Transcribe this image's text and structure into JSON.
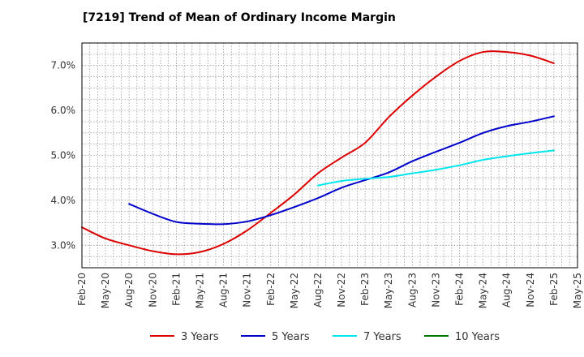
{
  "chart_data": {
    "type": "line",
    "title": "[7219]  Trend of Mean of Ordinary Income Margin",
    "xlabel": "",
    "ylabel": "",
    "x_tick_labels": [
      "Feb-20",
      "May-20",
      "Aug-20",
      "Nov-20",
      "Feb-21",
      "May-21",
      "Aug-21",
      "Nov-21",
      "Feb-22",
      "May-22",
      "Aug-22",
      "Nov-22",
      "Feb-23",
      "May-23",
      "Aug-23",
      "Nov-23",
      "Feb-24",
      "May-24",
      "Aug-24",
      "Nov-24",
      "Feb-25",
      "May-25"
    ],
    "y_ticks": [
      3.0,
      4.0,
      5.0,
      6.0,
      7.0
    ],
    "y_tick_labels": [
      "3.0%",
      "4.0%",
      "5.0%",
      "6.0%",
      "7.0%"
    ],
    "ylim": [
      2.5,
      7.5
    ],
    "grid": true,
    "legend_position": "bottom",
    "series": [
      {
        "name": "3 Years",
        "color": "#dd0000",
        "values": [
          3.4,
          3.15,
          3.0,
          2.87,
          2.8,
          2.85,
          3.03,
          3.33,
          3.72,
          4.13,
          4.6,
          4.95,
          5.28,
          5.85,
          6.33,
          6.75,
          7.1,
          7.3,
          7.3,
          7.22,
          7.05,
          null
        ]
      },
      {
        "name": "5 Years",
        "color": "#0000cc",
        "values": [
          null,
          null,
          3.92,
          3.7,
          3.52,
          3.48,
          3.47,
          3.53,
          3.67,
          3.85,
          4.05,
          4.28,
          4.45,
          4.62,
          4.87,
          5.08,
          5.28,
          5.5,
          5.65,
          5.75,
          5.87,
          null
        ]
      },
      {
        "name": "7 Years",
        "color": "#00e5ee",
        "values": [
          null,
          null,
          null,
          null,
          null,
          null,
          null,
          null,
          null,
          null,
          4.33,
          4.43,
          4.48,
          4.52,
          4.6,
          4.68,
          4.78,
          4.9,
          4.98,
          5.05,
          5.11,
          null
        ]
      },
      {
        "name": "10 Years",
        "color": "#007700",
        "values": [
          null,
          null,
          null,
          null,
          null,
          null,
          null,
          null,
          null,
          null,
          null,
          null,
          null,
          null,
          null,
          null,
          null,
          null,
          null,
          null,
          null,
          null
        ]
      }
    ]
  }
}
